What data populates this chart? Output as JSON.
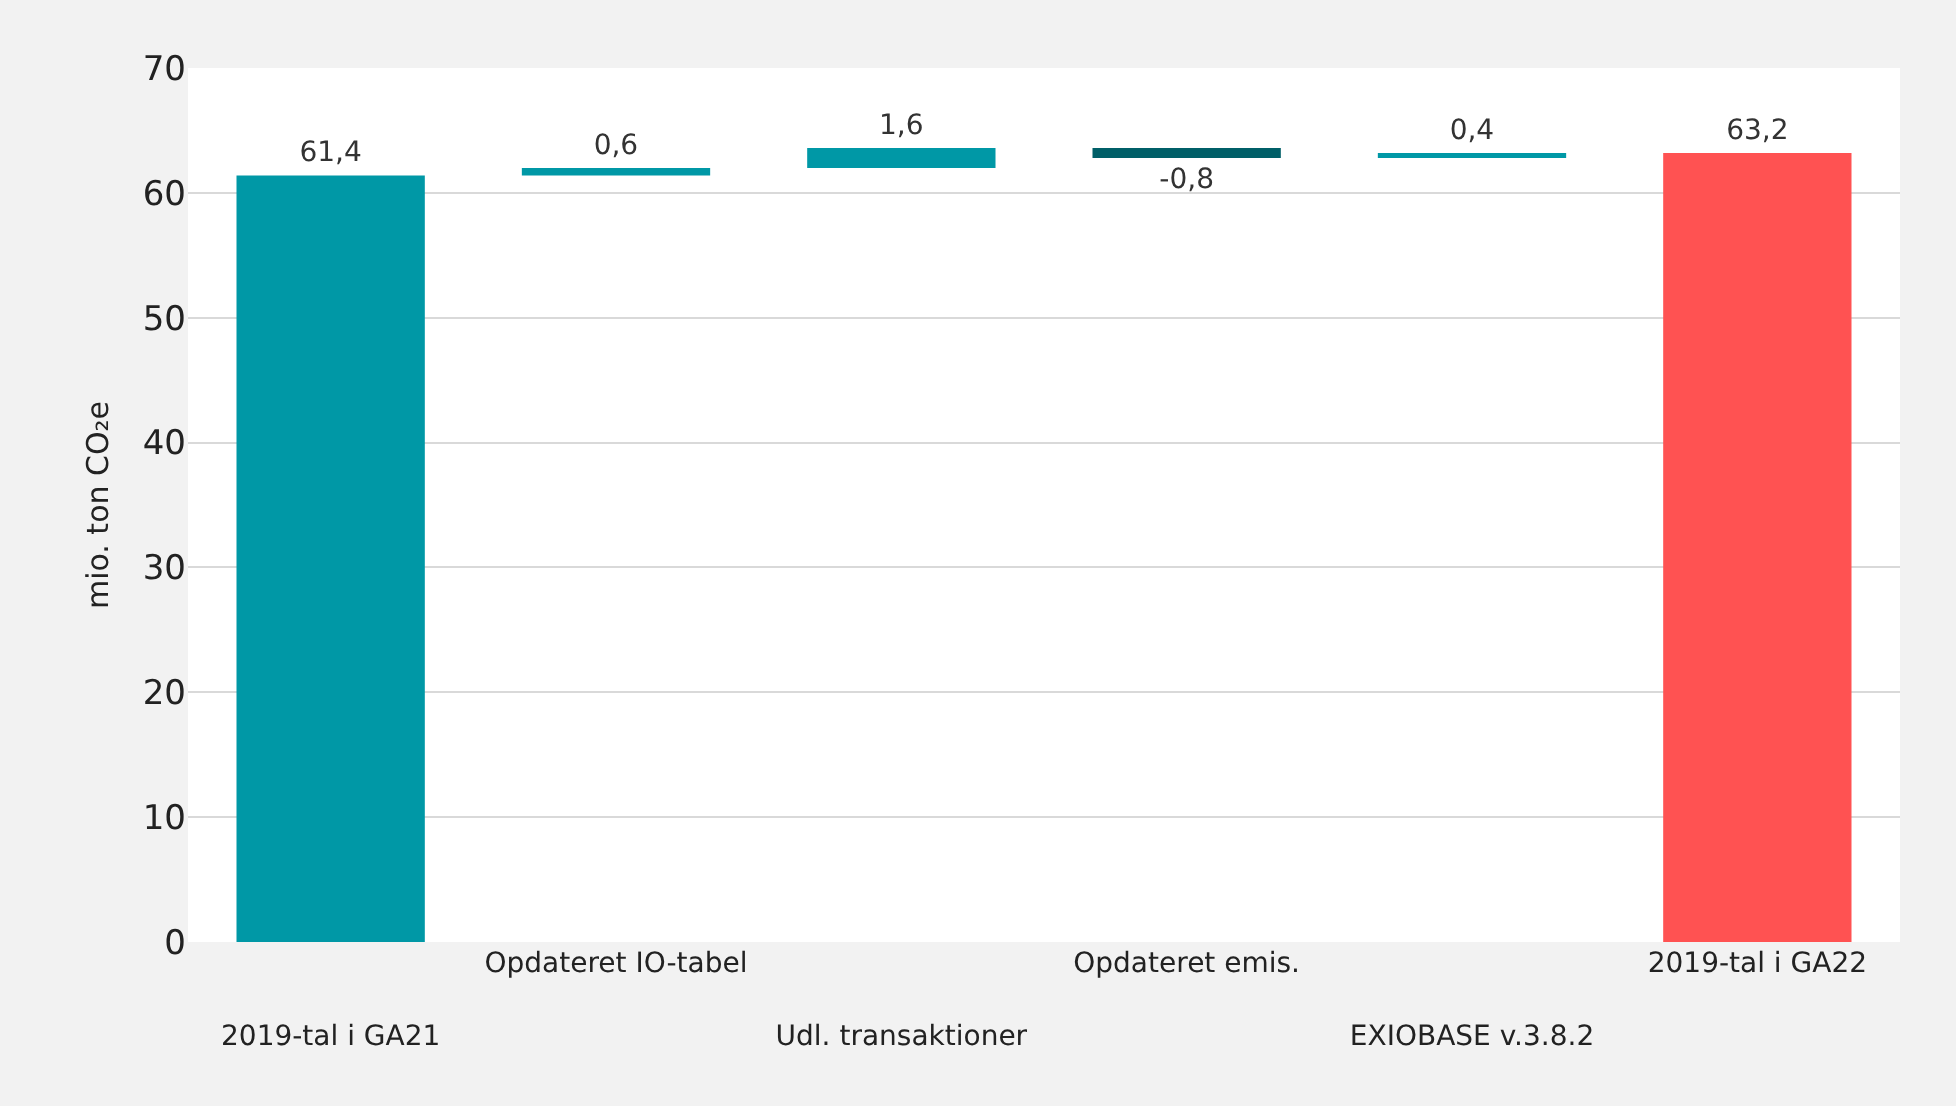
{
  "chart_data": {
    "type": "bar",
    "ylabel": "mio. ton CO₂e",
    "categories": [
      "2019-tal i GA21",
      "Opdateret IO-tabel",
      "Udl. transaktioner",
      "Opdateret emis.",
      "EXIOBASE v.3.8.2",
      "2019-tal i GA22"
    ],
    "values": [
      61.4,
      0.6,
      1.6,
      -0.8,
      0.4,
      63.2
    ],
    "base": [
      0,
      61.4,
      62.0,
      63.6,
      62.8,
      0
    ],
    "colors": [
      "#0098a6",
      "#0098a6",
      "#0098a6",
      "#005f68",
      "#0098a6",
      "#ff5252"
    ],
    "value_labels": [
      "61,4",
      "0,6",
      "1,6",
      "-0,8",
      "0,4",
      "63,2"
    ],
    "ylim": [
      0,
      70
    ],
    "yticks": [
      0,
      10,
      20,
      30,
      40,
      50,
      60,
      70
    ],
    "grid": "y",
    "legend": false
  }
}
